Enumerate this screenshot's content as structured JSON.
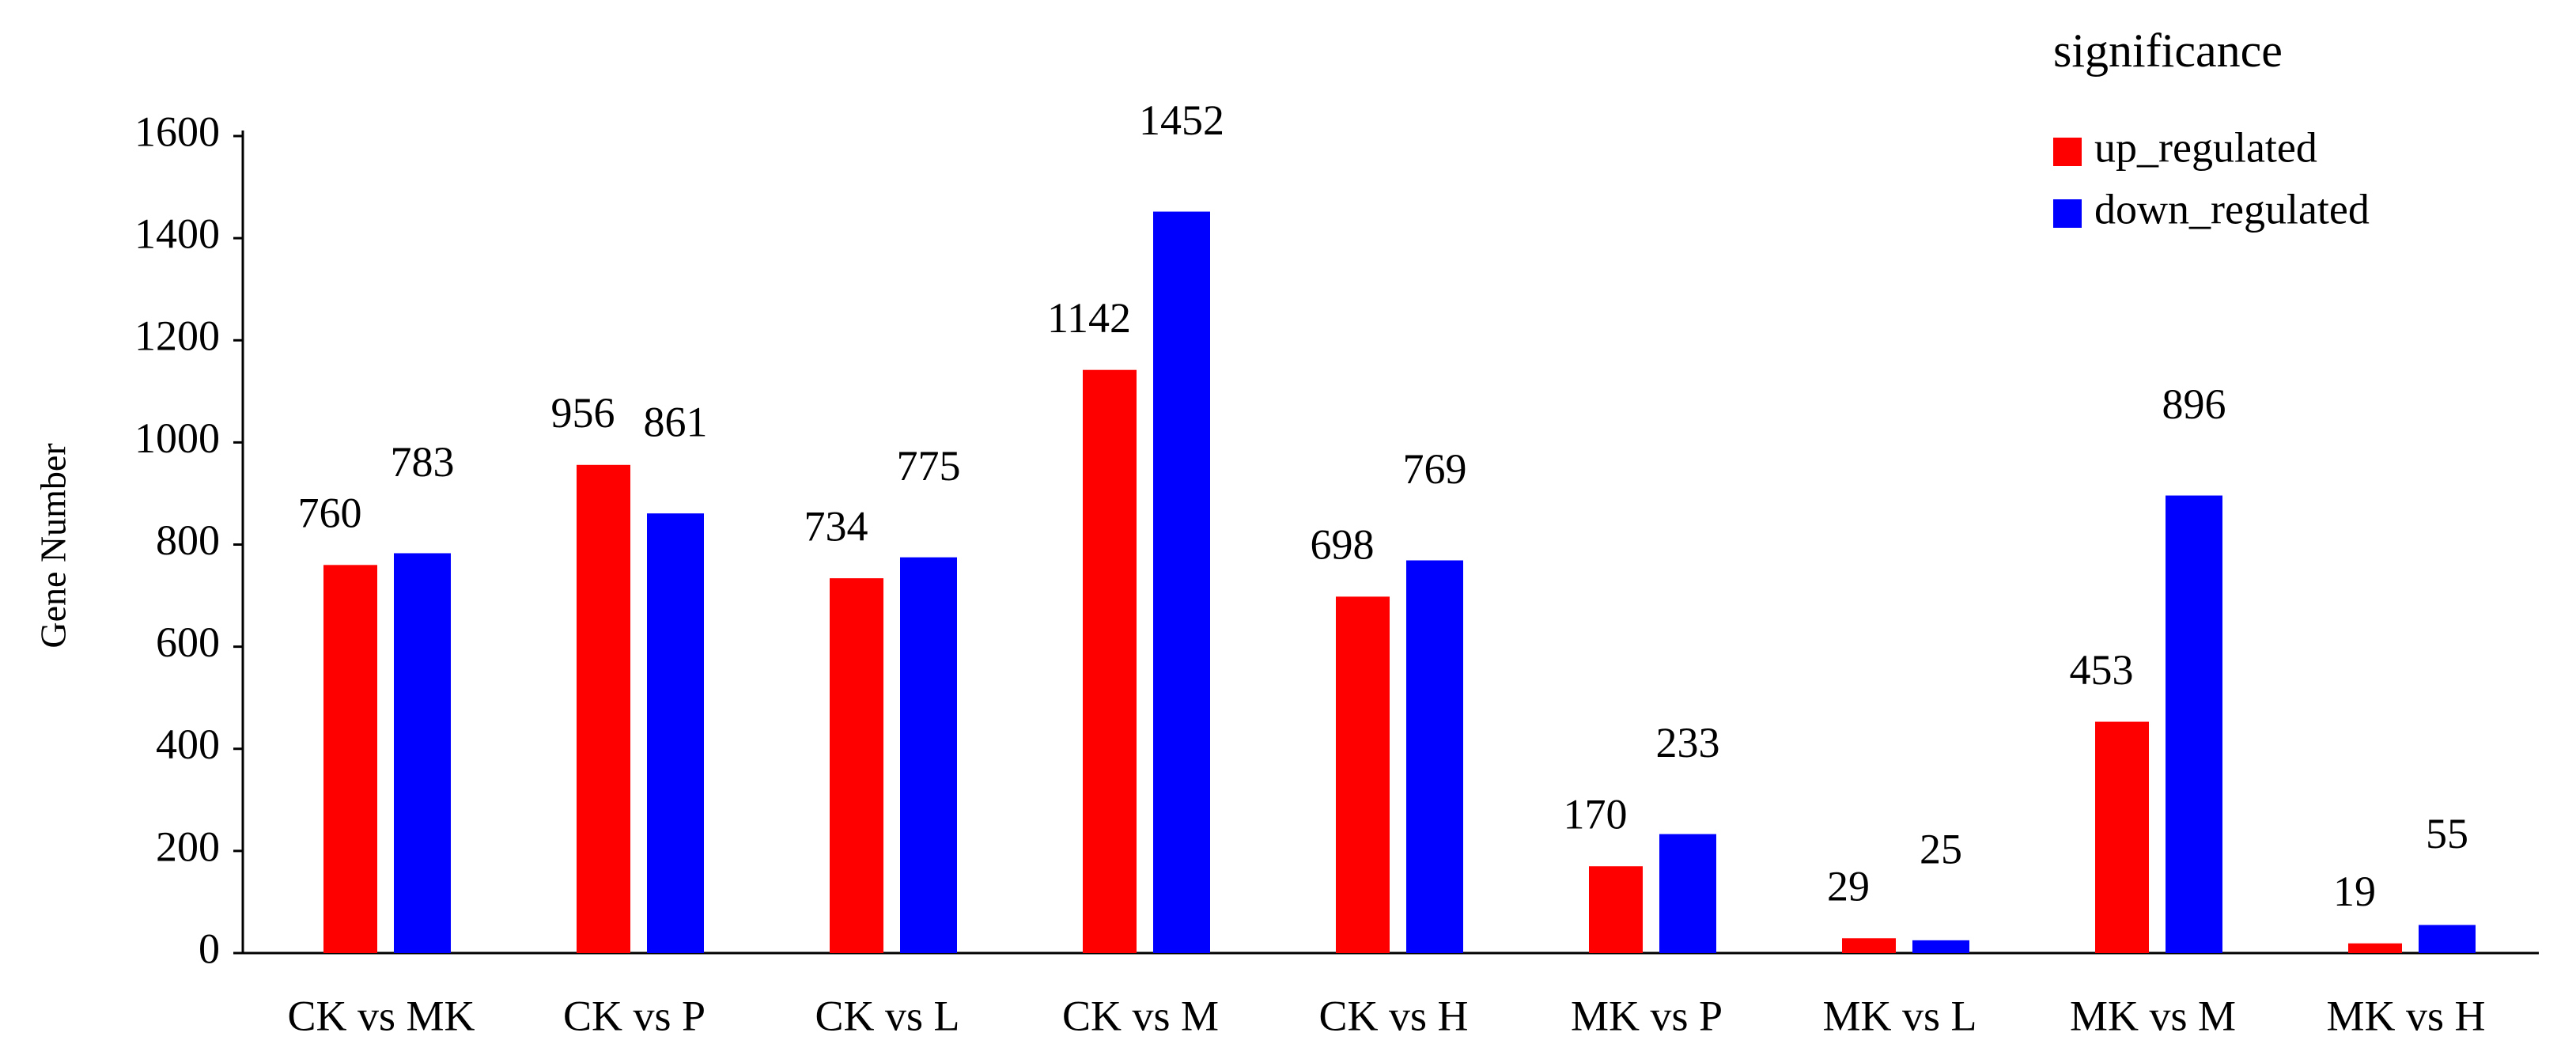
{
  "chart_data": {
    "type": "bar",
    "y_label": "Gene Number",
    "legend_title": "significance",
    "categories": [
      "CK vs MK",
      "CK vs P",
      "CK vs L",
      "CK vs M",
      "CK vs H",
      "MK vs P",
      "MK vs L",
      "MK vs M",
      "MK vs H"
    ],
    "series": [
      {
        "name": "up_regulated",
        "color": "#ff0000",
        "values": [
          760,
          956,
          734,
          1142,
          698,
          170,
          29,
          453,
          19
        ]
      },
      {
        "name": "down_regulated",
        "color": "#0000ff",
        "values": [
          783,
          861,
          775,
          1452,
          769,
          233,
          25,
          896,
          55
        ]
      }
    ],
    "ylim": [
      0,
      1600
    ],
    "yticks": [
      0,
      200,
      400,
      600,
      800,
      1000,
      1200,
      1400,
      1600
    ],
    "legend": "top-right"
  }
}
